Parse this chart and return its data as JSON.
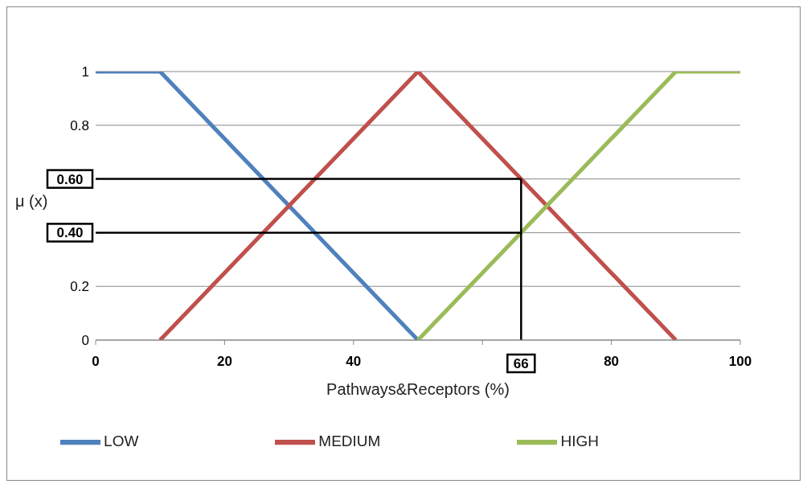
{
  "chart_data": {
    "type": "line",
    "xlabel": "Pathways&Receptors (%)",
    "ylabel": "μ (x)",
    "xlim": [
      0,
      100
    ],
    "xticks": [
      0,
      20,
      40,
      {
        "value": 60,
        "label": null
      },
      80,
      100
    ],
    "ylim": [
      0,
      1
    ],
    "yticks": [
      0,
      0.2,
      {
        "value": 0.4,
        "label": null
      },
      {
        "value": 0.6,
        "label": null
      },
      0.8,
      1
    ],
    "grid": "y",
    "legend": "bottom",
    "marker": "none",
    "line_style": "solid",
    "series": [
      {
        "name": "LOW",
        "color": "#4f81bd",
        "x": [
          0,
          10,
          50
        ],
        "values": [
          1,
          1,
          0
        ]
      },
      {
        "name": "MEDIUM",
        "color": "#c0504d",
        "x": [
          10,
          50,
          90
        ],
        "values": [
          0,
          1,
          0
        ]
      },
      {
        "name": "HIGH",
        "color": "#9bbb59",
        "x": [
          50,
          90,
          100
        ],
        "values": [
          0,
          1,
          1
        ]
      }
    ],
    "ref_lines": [
      {
        "axis": "y",
        "value": 0.6,
        "label": "0.60",
        "color": "#000000"
      },
      {
        "axis": "y",
        "value": 0.4,
        "label": "0.40",
        "color": "#000000"
      },
      {
        "axis": "x",
        "value": 66,
        "label": "66",
        "color": "#000000"
      }
    ]
  }
}
